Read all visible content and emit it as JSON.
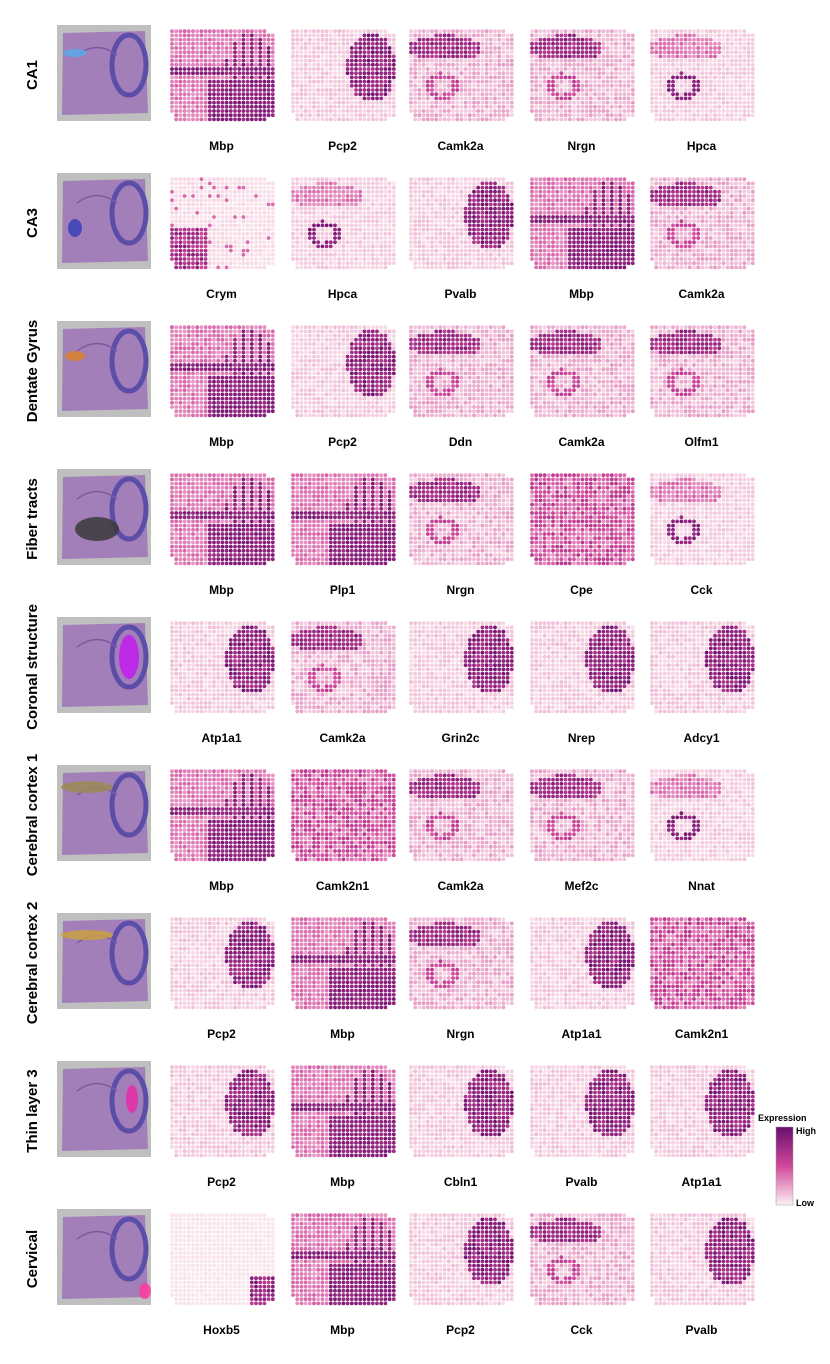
{
  "regions": [
    {
      "label": "CA1",
      "highlight_color": "#5aa9e6",
      "genes": [
        "Mbp",
        "Pcp2",
        "Camk2a",
        "Nrgn",
        "Hpca"
      ],
      "patterns": [
        "wm",
        "cereb",
        "cortex",
        "cortex",
        "hippo"
      ]
    },
    {
      "label": "CA3",
      "highlight_color": "#3b3fb8",
      "genes": [
        "Crym",
        "Hpca",
        "Pvalb",
        "Mbp",
        "Camk2a"
      ],
      "patterns": [
        "sparse",
        "hippo",
        "cereb",
        "wm",
        "cortex"
      ]
    },
    {
      "label": "Dentate Gyrus",
      "highlight_color": "#d9822b",
      "genes": [
        "Mbp",
        "Pcp2",
        "Ddn",
        "Camk2a",
        "Olfm1"
      ],
      "patterns": [
        "wm",
        "cereb",
        "cortex",
        "cortex",
        "cortex"
      ]
    },
    {
      "label": "Fiber tracts",
      "highlight_color": "#3a3a3a",
      "genes": [
        "Mbp",
        "Plp1",
        "Nrgn",
        "Cpe",
        "Cck"
      ],
      "patterns": [
        "wm",
        "wm",
        "cortex",
        "diffuse",
        "hippo"
      ]
    },
    {
      "label": "Coronal structure",
      "highlight_color": "#c21cf0",
      "genes": [
        "Atp1a1",
        "Camk2a",
        "Grin2c",
        "Nrep",
        "Adcy1"
      ],
      "patterns": [
        "cereb",
        "cortex",
        "cereb",
        "cereb",
        "cereb"
      ]
    },
    {
      "label": "Cerebral cortex 1",
      "highlight_color": "#9a8a55",
      "genes": [
        "Mbp",
        "Camk2n1",
        "Camk2a",
        "Mef2c",
        "Nnat"
      ],
      "patterns": [
        "wm",
        "diffuse",
        "cortex",
        "cortex",
        "hippo"
      ]
    },
    {
      "label": "Cerebral cortex 2",
      "highlight_color": "#c9a040",
      "genes": [
        "Pcp2",
        "Mbp",
        "Nrgn",
        "Atp1a1",
        "Camk2n1"
      ],
      "patterns": [
        "cereb",
        "wm",
        "cortex",
        "cereb",
        "diffuse"
      ]
    },
    {
      "label": "Thin layer 3",
      "highlight_color": "#e62aa8",
      "genes": [
        "Pcp2",
        "Mbp",
        "Cbln1",
        "Pvalb",
        "Atp1a1"
      ],
      "patterns": [
        "cereb",
        "wm",
        "cereb",
        "cereb",
        "cereb"
      ]
    },
    {
      "label": "Cervical",
      "highlight_color": "#ff3aa0",
      "genes": [
        "Hoxb5",
        "Mbp",
        "Pcp2",
        "Cck",
        "Pvalb"
      ],
      "patterns": [
        "brainstem",
        "wm",
        "cereb",
        "cortex",
        "cereb"
      ]
    }
  ],
  "legend": {
    "title": "Expression",
    "high_label": "High",
    "low_label": "Low",
    "high_color": "#6a0f6e",
    "mid_color": "#d0489a",
    "low_color": "#fdf1f3"
  },
  "colors": {
    "tissue_background": "#bfbfbf",
    "tissue_stain": "#a078b8",
    "cerebellum_stain": "#5c4ea8",
    "spot_base": "#fbe8ee"
  }
}
